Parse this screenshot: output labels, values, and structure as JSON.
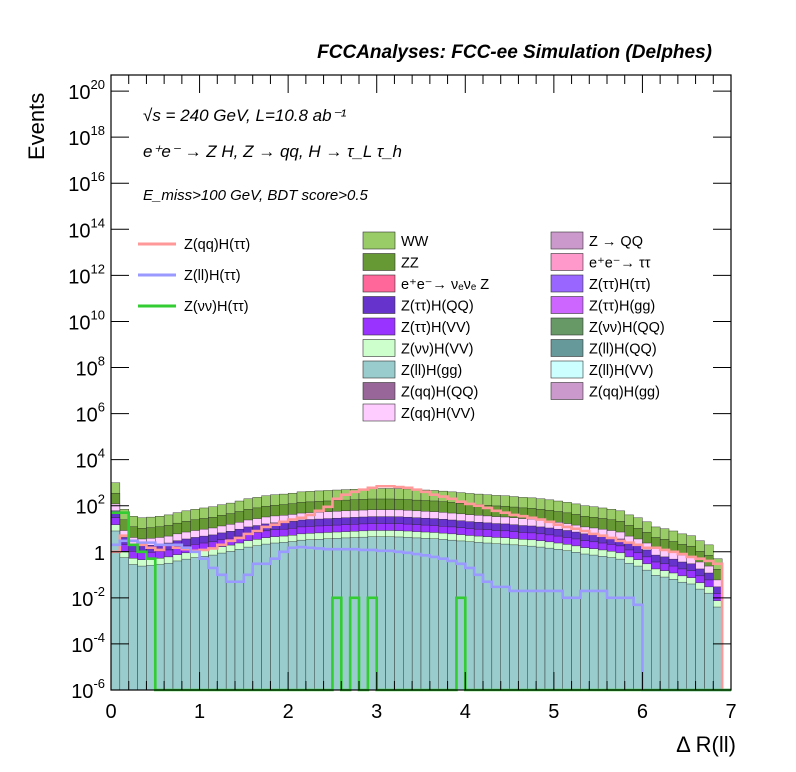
{
  "chart_data": {
    "type": "histogram",
    "title": "FCCAnalyses: FCC-ee Simulation (Delphes)",
    "xlabel": "Δ R(ll)",
    "ylabel": "Events",
    "xlim": [
      0,
      7
    ],
    "ylim": [
      1e-06,
      5e+20
    ],
    "yscale": "log",
    "x_ticks": [
      "0",
      "1",
      "2",
      "3",
      "4",
      "5",
      "6",
      "7"
    ],
    "y_ticks": [
      {
        "base": "10",
        "exp": "-6",
        "value": 1e-06
      },
      {
        "base": "10",
        "exp": "-4",
        "value": 0.0001
      },
      {
        "base": "10",
        "exp": "-2",
        "value": 0.01
      },
      {
        "base": "1",
        "exp": "",
        "value": 1
      },
      {
        "base": "10",
        "exp": "2",
        "value": 100.0
      },
      {
        "base": "10",
        "exp": "4",
        "value": 10000.0
      },
      {
        "base": "10",
        "exp": "6",
        "value": 1000000.0
      },
      {
        "base": "10",
        "exp": "8",
        "value": 100000000.0
      },
      {
        "base": "10",
        "exp": "10",
        "value": 10000000000.0
      },
      {
        "base": "10",
        "exp": "12",
        "value": 1000000000000.0
      },
      {
        "base": "10",
        "exp": "14",
        "value": 100000000000000.0
      },
      {
        "base": "10",
        "exp": "16",
        "value": 1e+16
      },
      {
        "base": "10",
        "exp": "18",
        "value": 1e+18
      },
      {
        "base": "10",
        "exp": "20",
        "value": 1e+20
      }
    ],
    "annotations": [
      "√s = 240 GeV, L=10.8 ab⁻¹",
      "e⁺e⁻ → Z H, Z → qq, H → τ_L τ_h",
      "E_miss>100 GeV, BDT score>0.5"
    ],
    "stacked_backgrounds": [
      {
        "name": "WW",
        "color": "#99cc66"
      },
      {
        "name": "ZZ",
        "color": "#669933"
      },
      {
        "name": "e⁺e⁻→ νₑνₑ Z",
        "color": "#ff6699"
      },
      {
        "name": "Z(ττ)H(QQ)",
        "color": "#6633cc"
      },
      {
        "name": "Z(ττ)H(VV)",
        "color": "#9933ff"
      },
      {
        "name": "Z(νν)H(VV)",
        "color": "#ccffcc"
      },
      {
        "name": "Z(ll)H(gg)",
        "color": "#99cccc"
      },
      {
        "name": "Z(qq)H(QQ)",
        "color": "#996699"
      },
      {
        "name": "Z(qq)H(VV)",
        "color": "#ffccff"
      },
      {
        "name": "Z → QQ",
        "color": "#cc99cc"
      },
      {
        "name": "e⁺e⁻→ ττ",
        "color": "#ff99cc"
      },
      {
        "name": "Z(ττ)H(ττ)",
        "color": "#9966ff"
      },
      {
        "name": "Z(ττ)H(gg)",
        "color": "#cc66ff"
      },
      {
        "name": "Z(νν)H(QQ)",
        "color": "#669966"
      },
      {
        "name": "Z(ll)H(QQ)",
        "color": "#669999"
      },
      {
        "name": "Z(ll)H(VV)",
        "color": "#ccffff"
      },
      {
        "name": "Z(qq)H(gg)",
        "color": "#cc99cc"
      }
    ],
    "signal_lines": [
      {
        "name": "Z(qq)H(ττ)",
        "color": "#ff9999"
      },
      {
        "name": "Z(ll)H(ττ)",
        "color": "#9999ff"
      },
      {
        "name": "Z(νν)H(ττ)",
        "color": "#33cc33"
      }
    ],
    "bin_edges": [
      0,
      0.1,
      0.2,
      0.3,
      0.4,
      0.5,
      0.6,
      0.7,
      0.8,
      0.9,
      1.0,
      1.1,
      1.2,
      1.3,
      1.4,
      1.5,
      1.6,
      1.7,
      1.8,
      1.9,
      2.0,
      2.1,
      2.2,
      2.3,
      2.4,
      2.5,
      2.6,
      2.7,
      2.8,
      2.9,
      3.0,
      3.1,
      3.2,
      3.3,
      3.4,
      3.5,
      3.6,
      3.7,
      3.8,
      3.9,
      4.0,
      4.1,
      4.2,
      4.3,
      4.4,
      4.5,
      4.6,
      4.7,
      4.8,
      4.9,
      5.0,
      5.1,
      5.2,
      5.3,
      5.4,
      5.5,
      5.6,
      5.7,
      5.8,
      5.9,
      6.0,
      6.1,
      6.2,
      6.3,
      6.4,
      6.5,
      6.6,
      6.7,
      6.8,
      6.9,
      7.0
    ],
    "stack_total": [
      1000,
      70,
      35,
      30,
      32,
      35,
      40,
      50,
      60,
      70,
      80,
      90,
      110,
      130,
      160,
      200,
      230,
      270,
      300,
      320,
      350,
      400,
      420,
      440,
      460,
      480,
      500,
      520,
      540,
      560,
      560,
      560,
      550,
      530,
      500,
      480,
      460,
      430,
      400,
      370,
      340,
      320,
      300,
      280,
      270,
      250,
      230,
      220,
      200,
      180,
      160,
      140,
      120,
      100,
      90,
      80,
      70,
      60,
      40,
      30,
      20,
      12,
      10,
      8,
      6,
      5,
      3,
      2,
      0.5,
      0
    ],
    "signal_values": {
      "Z(qq)H(ττ)": [
        1,
        5,
        3,
        2,
        1.5,
        1.2,
        2,
        1.5,
        1.3,
        1.1,
        1.2,
        1.4,
        2,
        3,
        4,
        6,
        8,
        12,
        15,
        20,
        25,
        30,
        40,
        60,
        90,
        200,
        300,
        400,
        500,
        600,
        700,
        700,
        650,
        600,
        500,
        400,
        300,
        250,
        200,
        150,
        120,
        100,
        80,
        60,
        50,
        40,
        35,
        30,
        25,
        20,
        15,
        12,
        10,
        8,
        6,
        5,
        4,
        3,
        2.5,
        2,
        1.5,
        1.5,
        1.2,
        1,
        0.8,
        0.6,
        0.5,
        0.4,
        0.3,
        0
      ],
      "Z(ll)H(ττ)": [
        2,
        3,
        3,
        2.5,
        2.5,
        2,
        2,
        2,
        1.5,
        1,
        0.5,
        0.2,
        0.1,
        0.05,
        0.05,
        0.1,
        0.3,
        0.3,
        0.5,
        1,
        1.5,
        1.6,
        1.5,
        1.4,
        1.3,
        1.3,
        1.3,
        1.3,
        1.2,
        1.2,
        1.1,
        1.1,
        1.0,
        0.9,
        0.8,
        0.7,
        0.6,
        0.5,
        0.4,
        0.3,
        0.2,
        0.1,
        0.05,
        0.03,
        0.03,
        0.02,
        0.02,
        0.02,
        0.02,
        0.02,
        0.02,
        0.01,
        0.01,
        0.02,
        0.02,
        0.02,
        0.01,
        0.01,
        0.01,
        0.005,
        0,
        0,
        0,
        0,
        0,
        0,
        0,
        0,
        0,
        0
      ],
      "Z(νν)H(ττ)": [
        50,
        50,
        2,
        1,
        0.5,
        0,
        0,
        0,
        0,
        0,
        0,
        0,
        0,
        0,
        0,
        0,
        0,
        0,
        0,
        0,
        0,
        0,
        0,
        0,
        0,
        0.01,
        0,
        0.01,
        0,
        0.01,
        0,
        0,
        0,
        0,
        0,
        0,
        0,
        0,
        0,
        0.01,
        0,
        0,
        0,
        0,
        0,
        0,
        0,
        0,
        0,
        0,
        0,
        0,
        0,
        0,
        0,
        0,
        0,
        0,
        0,
        0,
        0,
        0,
        0,
        0,
        0,
        0,
        0,
        0,
        0,
        0
      ]
    }
  }
}
